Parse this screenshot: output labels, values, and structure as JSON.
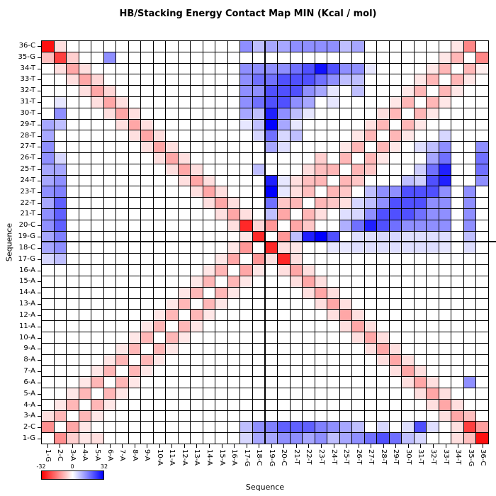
{
  "title": "HB/Stacking Energy Contact Map MIN (Kcal / mol)",
  "axes": {
    "x_label": "Sequence",
    "y_label": "Sequence"
  },
  "colorbar": {
    "min_label": "-32",
    "mid_label": "0",
    "max_label": "32",
    "negative_color": "#ff0000",
    "zero_color": "#ffffff",
    "positive_color": "#0000ff"
  },
  "chart_data": {
    "type": "heatmap",
    "title": "HB/Stacking Energy Contact Map MIN (Kcal / mol)",
    "xlabel": "Sequence",
    "ylabel": "Sequence",
    "value_range": [
      -32,
      32
    ],
    "palette": "red-white-blue",
    "grid": true,
    "crosshair_between_positions": [
      18,
      19
    ],
    "sequence": [
      "1-G",
      "2-C",
      "3-A",
      "4-A",
      "5-A",
      "6-A",
      "7-A",
      "8-A",
      "9-A",
      "10-A",
      "11-A",
      "12-A",
      "13-A",
      "14-A",
      "15-A",
      "16-A",
      "17-G",
      "18-C",
      "19-G",
      "20-C",
      "21-T",
      "22-T",
      "23-T",
      "24-T",
      "25-T",
      "26-T",
      "27-T",
      "28-T",
      "29-T",
      "30-T",
      "31-T",
      "32-T",
      "33-T",
      "34-T",
      "35-G",
      "36-C"
    ],
    "matrix": [
      [
        0,
        -14,
        -6,
        -3,
        -4,
        0,
        0,
        0,
        0,
        0,
        0,
        0,
        0,
        0,
        0,
        0,
        5,
        11,
        11,
        14,
        14,
        11,
        14,
        8,
        11,
        14,
        18,
        22,
        18,
        8,
        5,
        0,
        0,
        -4,
        -8,
        -30
      ],
      [
        -14,
        0,
        -11,
        -3,
        0,
        0,
        0,
        0,
        0,
        0,
        0,
        0,
        0,
        0,
        0,
        0,
        8,
        14,
        16,
        20,
        20,
        20,
        16,
        14,
        11,
        8,
        0,
        5,
        0,
        4,
        22,
        4,
        0,
        -4,
        -24,
        -12
      ],
      [
        -4,
        -9,
        0,
        -9,
        -3,
        0,
        0,
        0,
        0,
        0,
        0,
        0,
        0,
        0,
        0,
        0,
        0,
        0,
        0,
        0,
        0,
        0,
        0,
        0,
        0,
        0,
        0,
        0,
        0,
        0,
        0,
        0,
        -4,
        -11,
        -8,
        0
      ],
      [
        0,
        -3,
        -9,
        0,
        -9,
        -3,
        0,
        0,
        0,
        0,
        0,
        0,
        0,
        0,
        0,
        0,
        0,
        0,
        0,
        0,
        0,
        0,
        0,
        0,
        0,
        0,
        0,
        0,
        0,
        0,
        0,
        -4,
        -11,
        -4,
        0,
        0
      ],
      [
        0,
        0,
        -3,
        -9,
        0,
        -9,
        -3,
        0,
        0,
        0,
        0,
        0,
        0,
        0,
        0,
        0,
        0,
        0,
        0,
        0,
        0,
        0,
        0,
        0,
        0,
        0,
        0,
        0,
        0,
        0,
        -4,
        -11,
        -4,
        0,
        0,
        0
      ],
      [
        0,
        0,
        0,
        -3,
        -9,
        0,
        -9,
        -3,
        0,
        0,
        0,
        0,
        0,
        0,
        0,
        0,
        0,
        0,
        0,
        0,
        0,
        0,
        0,
        0,
        0,
        0,
        0,
        0,
        0,
        -4,
        -11,
        -4,
        0,
        0,
        14,
        0
      ],
      [
        0,
        0,
        0,
        0,
        -3,
        -9,
        0,
        -9,
        -3,
        0,
        0,
        0,
        0,
        0,
        0,
        0,
        0,
        0,
        0,
        0,
        0,
        0,
        0,
        0,
        0,
        0,
        0,
        0,
        -4,
        -11,
        -4,
        0,
        0,
        0,
        0,
        0
      ],
      [
        0,
        0,
        0,
        0,
        0,
        -3,
        -9,
        0,
        -9,
        -3,
        0,
        0,
        0,
        0,
        0,
        0,
        0,
        0,
        0,
        0,
        0,
        0,
        0,
        0,
        0,
        0,
        0,
        -4,
        -11,
        -4,
        0,
        0,
        0,
        0,
        0,
        0
      ],
      [
        0,
        0,
        0,
        0,
        0,
        0,
        -3,
        -9,
        0,
        -9,
        -3,
        0,
        0,
        0,
        0,
        0,
        0,
        0,
        0,
        0,
        0,
        0,
        0,
        0,
        0,
        0,
        -4,
        -11,
        -4,
        0,
        0,
        0,
        0,
        0,
        0,
        0
      ],
      [
        0,
        0,
        0,
        0,
        0,
        0,
        0,
        -3,
        -9,
        0,
        -9,
        -3,
        0,
        0,
        0,
        0,
        0,
        0,
        0,
        0,
        0,
        0,
        0,
        0,
        0,
        -4,
        -11,
        -4,
        0,
        0,
        0,
        0,
        0,
        0,
        0,
        0
      ],
      [
        0,
        0,
        0,
        0,
        0,
        0,
        0,
        0,
        -3,
        -9,
        0,
        -9,
        -3,
        0,
        0,
        0,
        0,
        0,
        0,
        0,
        0,
        0,
        0,
        0,
        -4,
        -11,
        -4,
        0,
        0,
        0,
        0,
        0,
        0,
        0,
        0,
        0
      ],
      [
        0,
        0,
        0,
        0,
        0,
        0,
        0,
        0,
        0,
        -3,
        -9,
        0,
        -9,
        -3,
        0,
        0,
        0,
        0,
        0,
        0,
        0,
        0,
        0,
        -4,
        -11,
        -4,
        0,
        0,
        0,
        0,
        0,
        0,
        0,
        0,
        0,
        0
      ],
      [
        0,
        0,
        0,
        0,
        0,
        0,
        0,
        0,
        0,
        0,
        -3,
        -9,
        0,
        -9,
        -3,
        0,
        0,
        0,
        0,
        0,
        0,
        0,
        -4,
        -11,
        -4,
        0,
        0,
        0,
        0,
        0,
        0,
        0,
        0,
        0,
        0,
        0
      ],
      [
        0,
        0,
        0,
        0,
        0,
        0,
        0,
        0,
        0,
        0,
        0,
        -3,
        -9,
        0,
        -9,
        -3,
        0,
        0,
        0,
        0,
        0,
        -4,
        -11,
        -4,
        0,
        0,
        0,
        0,
        0,
        0,
        0,
        0,
        0,
        0,
        0,
        0
      ],
      [
        0,
        0,
        0,
        0,
        0,
        0,
        0,
        0,
        0,
        0,
        0,
        0,
        -3,
        -9,
        0,
        -9,
        -3,
        0,
        0,
        0,
        -4,
        -11,
        -4,
        0,
        0,
        0,
        0,
        0,
        0,
        0,
        0,
        0,
        0,
        0,
        0,
        0
      ],
      [
        0,
        0,
        0,
        0,
        0,
        0,
        0,
        0,
        0,
        0,
        0,
        0,
        0,
        -3,
        -9,
        0,
        -11,
        -3,
        0,
        -4,
        -11,
        -4,
        0,
        0,
        0,
        0,
        0,
        0,
        0,
        0,
        0,
        0,
        0,
        0,
        0,
        0
      ],
      [
        5,
        8,
        0,
        0,
        0,
        0,
        0,
        0,
        0,
        0,
        0,
        0,
        0,
        0,
        -3,
        -11,
        0,
        -13,
        -4,
        -27,
        -4,
        0,
        0,
        0,
        0,
        0,
        0,
        0,
        0,
        0,
        0,
        0,
        0,
        0,
        0,
        0
      ],
      [
        11,
        14,
        0,
        0,
        0,
        0,
        0,
        0,
        0,
        0,
        0,
        0,
        0,
        0,
        0,
        -3,
        -13,
        0,
        -27,
        -4,
        -3,
        0,
        0,
        3,
        3,
        4,
        4,
        4,
        4,
        4,
        4,
        4,
        3,
        0,
        4,
        0
      ],
      [
        11,
        16,
        0,
        0,
        0,
        0,
        0,
        0,
        0,
        0,
        0,
        0,
        0,
        0,
        0,
        0,
        -3,
        -27,
        0,
        -13,
        8,
        28,
        32,
        22,
        0,
        4,
        4,
        5,
        5,
        4,
        4,
        4,
        4,
        0,
        8,
        0
      ],
      [
        14,
        20,
        0,
        0,
        0,
        0,
        0,
        0,
        0,
        0,
        0,
        0,
        0,
        0,
        0,
        -4,
        -27,
        -5,
        -13,
        0,
        -11,
        -7,
        0,
        0,
        10,
        18,
        28,
        22,
        18,
        14,
        14,
        14,
        14,
        0,
        14,
        0
      ],
      [
        14,
        20,
        0,
        0,
        0,
        0,
        0,
        0,
        0,
        0,
        0,
        0,
        0,
        0,
        -4,
        -11,
        -4,
        0,
        8,
        -11,
        0,
        -9,
        -4,
        0,
        4,
        5,
        14,
        22,
        22,
        22,
        18,
        14,
        14,
        0,
        14,
        0
      ],
      [
        11,
        20,
        0,
        0,
        0,
        0,
        0,
        0,
        0,
        0,
        0,
        0,
        0,
        -4,
        -11,
        -4,
        0,
        0,
        18,
        -7,
        -9,
        0,
        -9,
        -7,
        -4,
        5,
        8,
        14,
        22,
        22,
        22,
        14,
        14,
        0,
        14,
        0
      ],
      [
        14,
        16,
        0,
        0,
        0,
        0,
        0,
        0,
        0,
        0,
        0,
        0,
        -4,
        -11,
        -4,
        0,
        0,
        0,
        32,
        3,
        -4,
        -8,
        0,
        -9,
        -7,
        0,
        8,
        14,
        14,
        22,
        22,
        22,
        14,
        0,
        14,
        0
      ],
      [
        11,
        14,
        0,
        0,
        0,
        0,
        0,
        0,
        0,
        0,
        0,
        -4,
        -11,
        -4,
        0,
        0,
        0,
        0,
        28,
        3,
        -4,
        -8,
        -9,
        0,
        -9,
        -7,
        0,
        0,
        0,
        8,
        6,
        22,
        28,
        0,
        0,
        14
      ],
      [
        11,
        11,
        0,
        0,
        0,
        0,
        0,
        0,
        0,
        0,
        -4,
        -11,
        -4,
        0,
        0,
        0,
        0,
        8,
        0,
        0,
        0,
        -4,
        -8,
        -9,
        0,
        -9,
        -7,
        0,
        0,
        0,
        6,
        18,
        28,
        0,
        0,
        18
      ],
      [
        14,
        5,
        0,
        0,
        0,
        0,
        0,
        0,
        0,
        -4,
        -11,
        -4,
        0,
        0,
        0,
        0,
        0,
        0,
        0,
        0,
        0,
        0,
        -6,
        0,
        -9,
        0,
        -9,
        -3,
        0,
        0,
        0,
        11,
        18,
        0,
        0,
        18
      ],
      [
        14,
        0,
        0,
        0,
        0,
        0,
        0,
        0,
        -4,
        -11,
        -4,
        0,
        0,
        0,
        0,
        0,
        0,
        0,
        11,
        4,
        0,
        0,
        0,
        0,
        -3,
        -9,
        0,
        -9,
        -3,
        0,
        4,
        8,
        14,
        0,
        0,
        14
      ],
      [
        11,
        0,
        0,
        0,
        0,
        0,
        0,
        -4,
        -11,
        -4,
        0,
        0,
        0,
        0,
        0,
        0,
        0,
        5,
        18,
        5,
        8,
        0,
        0,
        0,
        0,
        -3,
        -9,
        0,
        -9,
        -3,
        0,
        0,
        5,
        0,
        0,
        0
      ],
      [
        11,
        8,
        0,
        0,
        0,
        0,
        -4,
        -11,
        -4,
        0,
        0,
        0,
        0,
        0,
        0,
        0,
        3,
        8,
        32,
        11,
        3,
        0,
        0,
        0,
        0,
        0,
        -4,
        -9,
        0,
        -9,
        -3,
        0,
        0,
        0,
        0,
        0
      ],
      [
        0,
        14,
        0,
        0,
        0,
        -4,
        -11,
        -4,
        0,
        0,
        0,
        0,
        0,
        0,
        0,
        0,
        11,
        8,
        28,
        14,
        8,
        3,
        0,
        0,
        0,
        0,
        0,
        -4,
        -9,
        0,
        -9,
        -3,
        0,
        0,
        0,
        0
      ],
      [
        0,
        3,
        0,
        0,
        -4,
        -11,
        -4,
        0,
        0,
        0,
        0,
        0,
        0,
        0,
        0,
        0,
        14,
        18,
        22,
        22,
        14,
        11,
        0,
        3,
        0,
        0,
        0,
        0,
        -3,
        -9,
        0,
        -9,
        -3,
        0,
        0,
        0
      ],
      [
        0,
        0,
        0,
        -4,
        -11,
        -5,
        0,
        0,
        0,
        0,
        0,
        0,
        0,
        0,
        0,
        0,
        14,
        14,
        22,
        22,
        22,
        14,
        11,
        3,
        0,
        8,
        0,
        0,
        0,
        -3,
        -9,
        0,
        -9,
        -3,
        0,
        0
      ],
      [
        0,
        0,
        -4,
        -11,
        -5,
        0,
        0,
        0,
        0,
        0,
        0,
        0,
        0,
        0,
        0,
        0,
        14,
        18,
        18,
        22,
        22,
        22,
        18,
        14,
        8,
        8,
        0,
        0,
        0,
        0,
        -3,
        -9,
        0,
        -9,
        -3,
        0
      ],
      [
        0,
        -4,
        -11,
        -4,
        0,
        0,
        0,
        0,
        0,
        0,
        0,
        0,
        0,
        0,
        0,
        0,
        14,
        14,
        14,
        14,
        18,
        22,
        30,
        22,
        14,
        14,
        3,
        0,
        0,
        0,
        0,
        -3,
        -9,
        0,
        -9,
        -2
      ],
      [
        -8,
        -24,
        -6,
        0,
        0,
        14,
        0,
        0,
        0,
        0,
        0,
        0,
        0,
        0,
        0,
        0,
        0,
        0,
        0,
        0,
        0,
        0,
        0,
        0,
        0,
        0,
        0,
        0,
        0,
        0,
        0,
        0,
        -3,
        -9,
        0,
        -15
      ],
      [
        -30,
        -4,
        0,
        0,
        0,
        0,
        0,
        0,
        0,
        0,
        0,
        0,
        0,
        0,
        0,
        0,
        14,
        8,
        11,
        11,
        14,
        14,
        14,
        14,
        8,
        11,
        0,
        0,
        0,
        0,
        0,
        0,
        0,
        -3,
        -15,
        0
      ]
    ]
  }
}
